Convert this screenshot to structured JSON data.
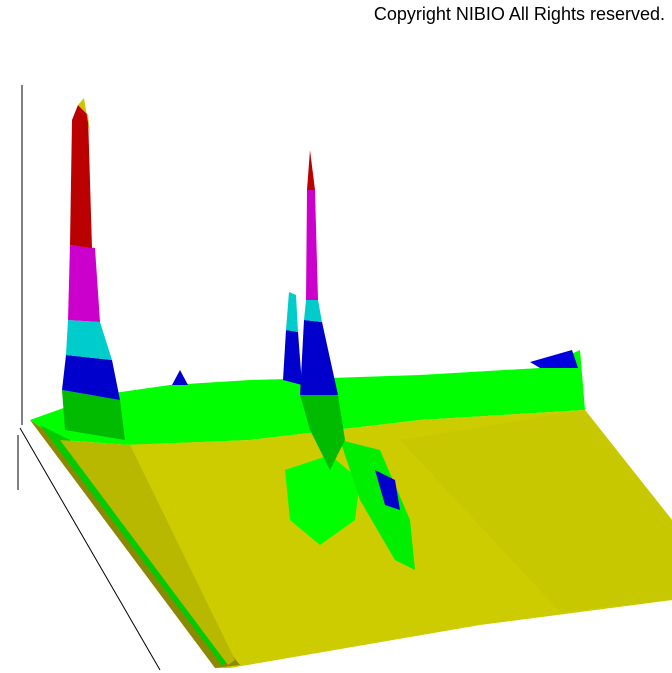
{
  "chart_data": {
    "type": "surface",
    "annotation": "Copyright NIBIO All Rights reserved."
  }
}
